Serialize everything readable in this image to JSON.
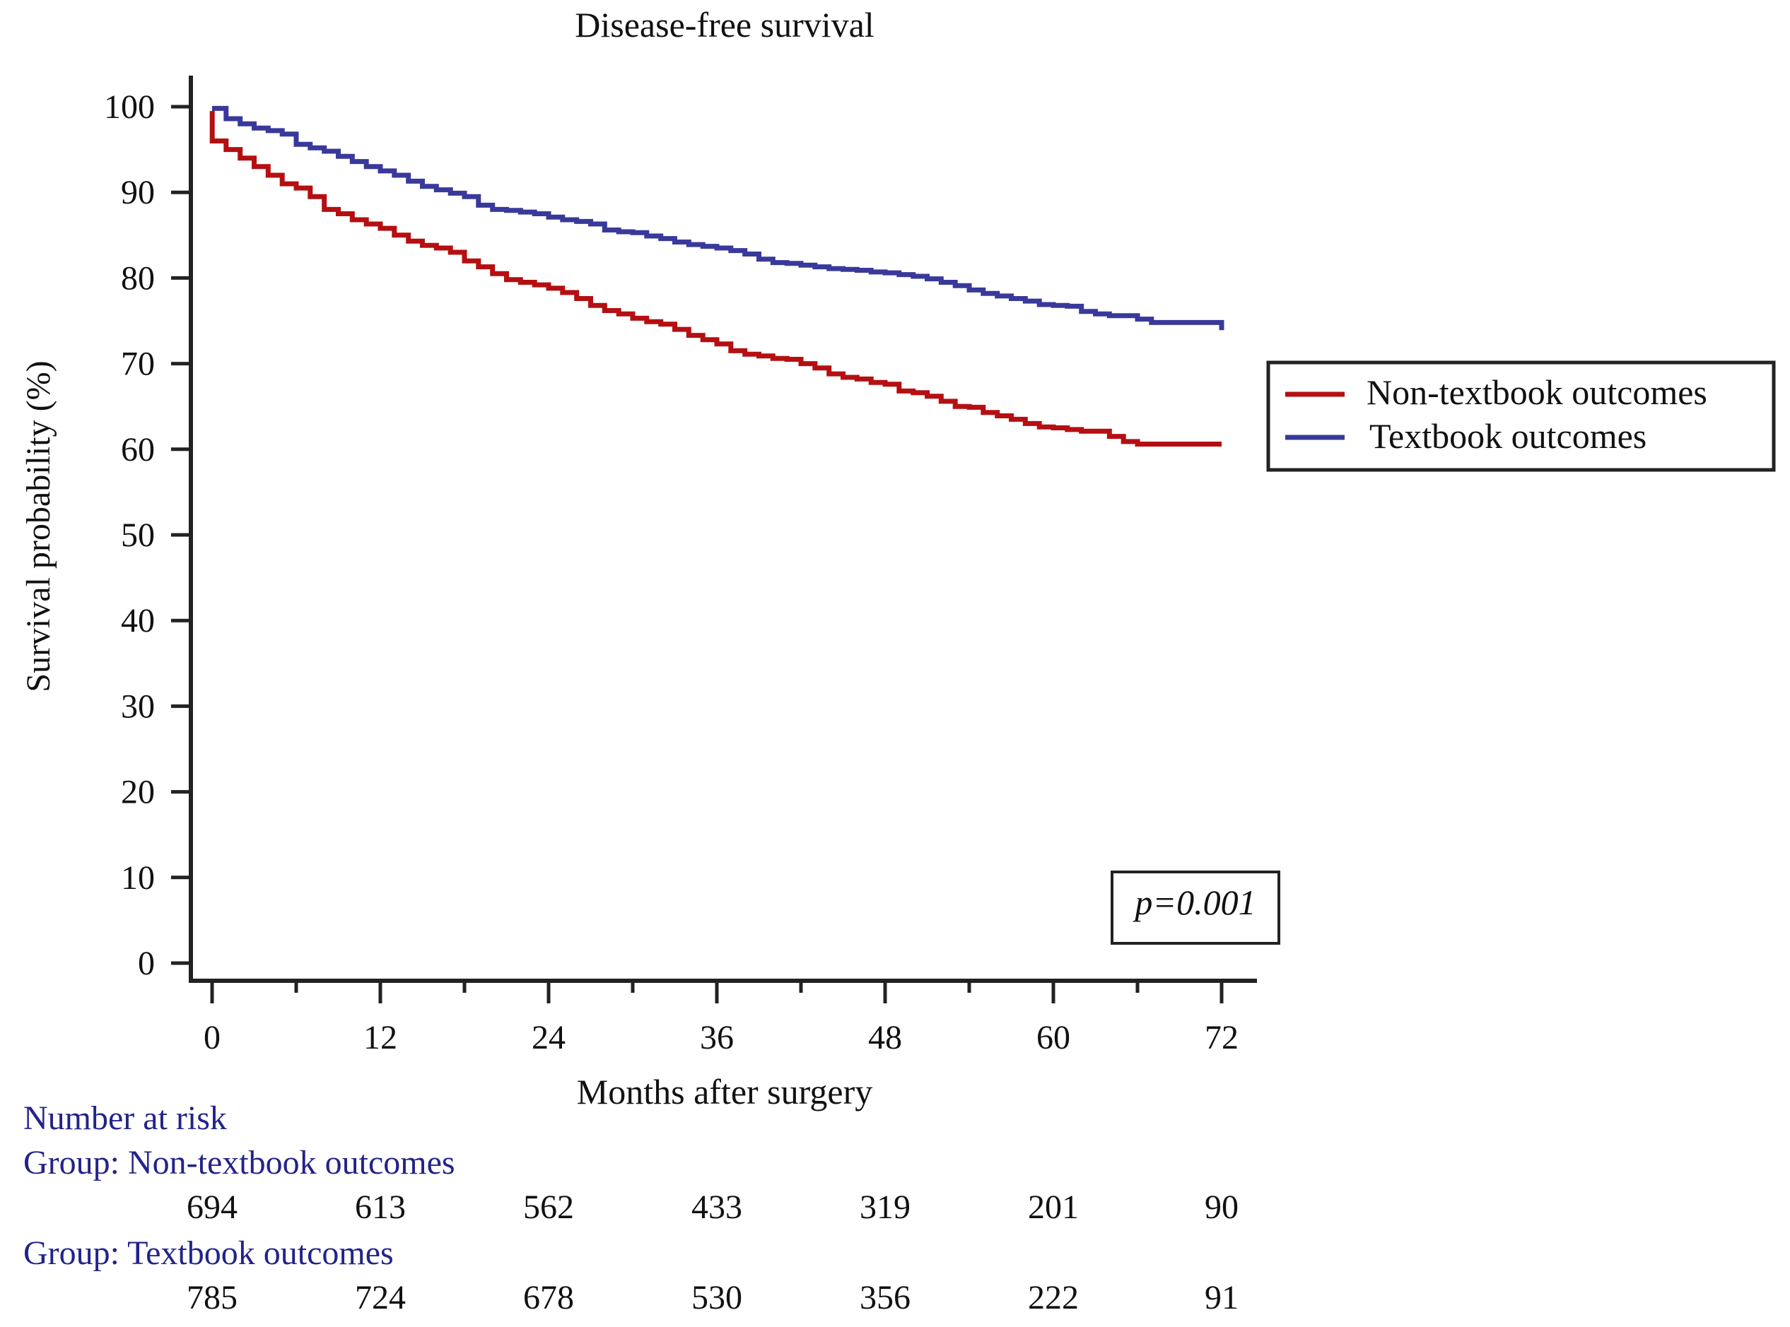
{
  "chart_data": {
    "type": "line",
    "title": "Disease-free survival",
    "xlabel": "Months after surgery",
    "ylabel": "Survival probability (%)",
    "xlim": [
      0,
      72
    ],
    "ylim": [
      0,
      100
    ],
    "x_ticks": [
      0,
      12,
      24,
      36,
      48,
      60,
      72
    ],
    "x_tick_labels": [
      "0",
      "12",
      "24",
      "36",
      "48",
      "60",
      "72"
    ],
    "x_minor_ticks": [
      6,
      18,
      30,
      42,
      54,
      66
    ],
    "y_ticks": [
      0,
      10,
      20,
      30,
      40,
      50,
      60,
      70,
      80,
      90,
      100
    ],
    "y_tick_labels": [
      "0",
      "10",
      "20",
      "30",
      "40",
      "50",
      "60",
      "70",
      "80",
      "90",
      "100"
    ],
    "grid": false,
    "legend_position": "right",
    "series": [
      {
        "name": "Non-textbook outcomes",
        "color": "#b50f12",
        "step": true,
        "x": [
          0,
          0.01,
          1,
          2,
          3,
          4,
          5,
          6,
          7,
          8,
          9,
          10,
          11,
          12,
          13,
          14,
          15,
          16,
          17,
          18,
          19,
          20,
          21,
          22,
          23,
          24,
          25,
          26,
          27,
          28,
          29,
          30,
          31,
          32,
          33,
          34,
          35,
          36,
          37,
          38,
          39,
          40,
          41,
          42,
          43,
          44,
          45,
          46,
          47,
          48,
          49,
          50,
          51,
          52,
          53,
          54,
          55,
          56,
          57,
          58,
          59,
          60,
          61,
          62,
          63,
          64,
          65,
          66,
          67,
          68,
          69,
          70,
          71,
          72
        ],
        "y": [
          99.5,
          96.0,
          95.0,
          94.0,
          93.0,
          92.0,
          91.0,
          90.5,
          89.5,
          88.0,
          87.5,
          86.8,
          86.3,
          85.8,
          85.0,
          84.3,
          83.8,
          83.5,
          83.0,
          82.0,
          81.3,
          80.5,
          79.8,
          79.5,
          79.2,
          78.8,
          78.3,
          77.6,
          76.8,
          76.2,
          75.8,
          75.3,
          74.9,
          74.6,
          74.0,
          73.3,
          72.8,
          72.3,
          71.5,
          71.1,
          70.9,
          70.6,
          70.5,
          70.0,
          69.5,
          68.8,
          68.4,
          68.2,
          67.8,
          67.6,
          66.8,
          66.6,
          66.2,
          65.6,
          65.0,
          64.9,
          64.3,
          63.9,
          63.5,
          63.0,
          62.6,
          62.5,
          62.3,
          62.1,
          62.1,
          61.5,
          60.9,
          60.6,
          60.6,
          60.6,
          60.6,
          60.6,
          60.6,
          60.6
        ]
      },
      {
        "name": "Textbook outcomes",
        "color": "#39399b",
        "step": true,
        "x": [
          0,
          1,
          2,
          3,
          4,
          5,
          6,
          7,
          8,
          9,
          10,
          11,
          12,
          13,
          14,
          15,
          16,
          17,
          18,
          19,
          20,
          21,
          22,
          23,
          24,
          25,
          26,
          27,
          28,
          29,
          30,
          31,
          32,
          33,
          34,
          35,
          36,
          37,
          38,
          39,
          40,
          41,
          42,
          43,
          44,
          45,
          46,
          47,
          48,
          49,
          50,
          51,
          52,
          53,
          54,
          55,
          56,
          57,
          58,
          59,
          60,
          61,
          62,
          63,
          64,
          65,
          66,
          67,
          68,
          69,
          70,
          71,
          72
        ],
        "y": [
          99.8,
          98.6,
          98.0,
          97.5,
          97.2,
          96.8,
          95.6,
          95.2,
          94.8,
          94.2,
          93.6,
          93.0,
          92.5,
          92.0,
          91.3,
          90.7,
          90.3,
          89.9,
          89.5,
          88.5,
          88.0,
          87.9,
          87.7,
          87.5,
          87.1,
          86.8,
          86.6,
          86.3,
          85.6,
          85.4,
          85.3,
          84.9,
          84.6,
          84.2,
          83.9,
          83.7,
          83.5,
          83.2,
          82.8,
          82.2,
          81.8,
          81.7,
          81.5,
          81.3,
          81.1,
          81.0,
          80.9,
          80.7,
          80.6,
          80.4,
          80.2,
          79.9,
          79.5,
          79.1,
          78.6,
          78.2,
          77.9,
          77.6,
          77.3,
          76.9,
          76.8,
          76.7,
          76.1,
          75.8,
          75.6,
          75.6,
          75.2,
          74.8,
          74.8,
          74.8,
          74.8,
          74.8,
          73.9
        ]
      }
    ],
    "annotation": "p=0.001",
    "risk_table": {
      "title": "Number at risk",
      "groups": [
        {
          "label": "Group: Non-textbook outcomes",
          "values": [
            "694",
            "613",
            "562",
            "433",
            "319",
            "201",
            "90"
          ]
        },
        {
          "label": "Group: Textbook outcomes",
          "values": [
            "785",
            "724",
            "678",
            "530",
            "356",
            "222",
            "91"
          ]
        }
      ]
    },
    "colors": {
      "axis": "#222222",
      "text": "#111111",
      "risk_text": "#232389"
    }
  }
}
